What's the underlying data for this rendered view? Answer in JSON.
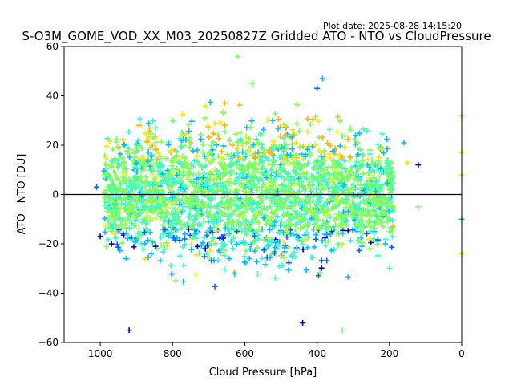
{
  "figure": {
    "plot_date_label": "Plot date: 2025-08-28 14:15:20",
    "title": "S-O3M_GOME_VOD_XX_M03_20250827Z Gridded ATO - NTO vs CloudPressure"
  },
  "chart_data": {
    "type": "scatter",
    "title": "S-O3M_GOME_VOD_XX_M03_20250827Z Gridded ATO - NTO vs CloudPressure",
    "xlabel": "Cloud Pressure [hPa]",
    "ylabel": "ATO - NTO [DU]",
    "xlim": [
      1100,
      0
    ],
    "ylim": [
      -60,
      60
    ],
    "x_reversed": true,
    "x_ticks": [
      1000,
      800,
      600,
      400,
      200,
      0
    ],
    "y_ticks": [
      -60,
      -40,
      -20,
      0,
      20,
      40,
      60
    ],
    "x_tick_labels": [
      "1000",
      "800",
      "600",
      "400",
      "200",
      "0"
    ],
    "y_tick_labels": [
      "−60",
      "−40",
      "−20",
      "0",
      "20",
      "40",
      "60"
    ],
    "reference_line": {
      "y": 0,
      "color": "#000000"
    },
    "marker": "+",
    "grid": false,
    "legend": "none",
    "colors": [
      "#0000c8",
      "#0064ff",
      "#00bfff",
      "#33ffcc",
      "#7fff5a",
      "#c8ff3c",
      "#ffe600",
      "#ffb400"
    ],
    "point_cloud": {
      "x_range": [
        990,
        190
      ],
      "y_range_core": [
        -35,
        35
      ],
      "dense_center_y": 0
    },
    "highlight_points": [
      {
        "x": 1010,
        "y": 3,
        "color": "#0064ff"
      },
      {
        "x": 1000,
        "y": -17,
        "color": "#0000c8"
      },
      {
        "x": 920,
        "y": -55,
        "color": "#0000c8"
      },
      {
        "x": 620,
        "y": 56,
        "color": "#7fff5a"
      },
      {
        "x": 580,
        "y": 45,
        "color": "#7fff5a"
      },
      {
        "x": 400,
        "y": 43,
        "color": "#0064ff"
      },
      {
        "x": 385,
        "y": 47,
        "color": "#00bfff"
      },
      {
        "x": 160,
        "y": 21,
        "color": "#00bfff"
      },
      {
        "x": 120,
        "y": 12,
        "color": "#0000c8"
      },
      {
        "x": 150,
        "y": 13,
        "color": "#ffe600"
      },
      {
        "x": 190,
        "y": -13,
        "color": "#ffb400"
      },
      {
        "x": 200,
        "y": -30,
        "color": "#33ffcc"
      },
      {
        "x": 120,
        "y": -5,
        "color": "#7fff5a"
      },
      {
        "x": 0,
        "y": 32,
        "color": "#7fff5a"
      },
      {
        "x": 0,
        "y": 17,
        "color": "#ffe600"
      },
      {
        "x": 0,
        "y": 8,
        "color": "#ffe600"
      },
      {
        "x": 0,
        "y": -10,
        "color": "#00bfff"
      },
      {
        "x": 0,
        "y": -24,
        "color": "#ffe600"
      },
      {
        "x": 330,
        "y": -55,
        "color": "#7fff5a"
      },
      {
        "x": 440,
        "y": -52,
        "color": "#0000c8"
      }
    ]
  }
}
